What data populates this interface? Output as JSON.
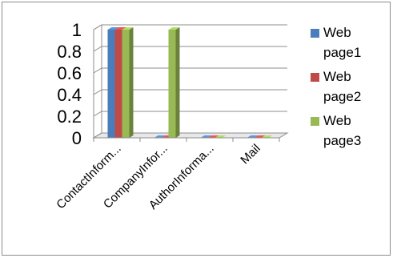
{
  "chart_data": {
    "type": "bar",
    "style": "3d-clustered-column",
    "categories": [
      "ContactInform...",
      "CompanyInfor...",
      "AuthorInforma...",
      "Mail"
    ],
    "series": [
      {
        "name": "Web page1",
        "legend_lines": [
          "Web",
          "page1"
        ],
        "color": "#4a7ebb",
        "values": [
          1,
          0,
          0,
          0
        ]
      },
      {
        "name": "Web page2",
        "legend_lines": [
          "Web",
          "page2"
        ],
        "color": "#be4b48",
        "values": [
          1,
          0,
          0,
          0
        ]
      },
      {
        "name": "Web page3",
        "legend_lines": [
          "Web",
          "page3"
        ],
        "color": "#98b954",
        "values": [
          1,
          1,
          0,
          0
        ]
      }
    ],
    "yticks": [
      "0",
      "0.2",
      "0.4",
      "0.6",
      "0.8",
      "1"
    ],
    "ylim": [
      0,
      1
    ],
    "grid": true,
    "legend_position": "right"
  }
}
